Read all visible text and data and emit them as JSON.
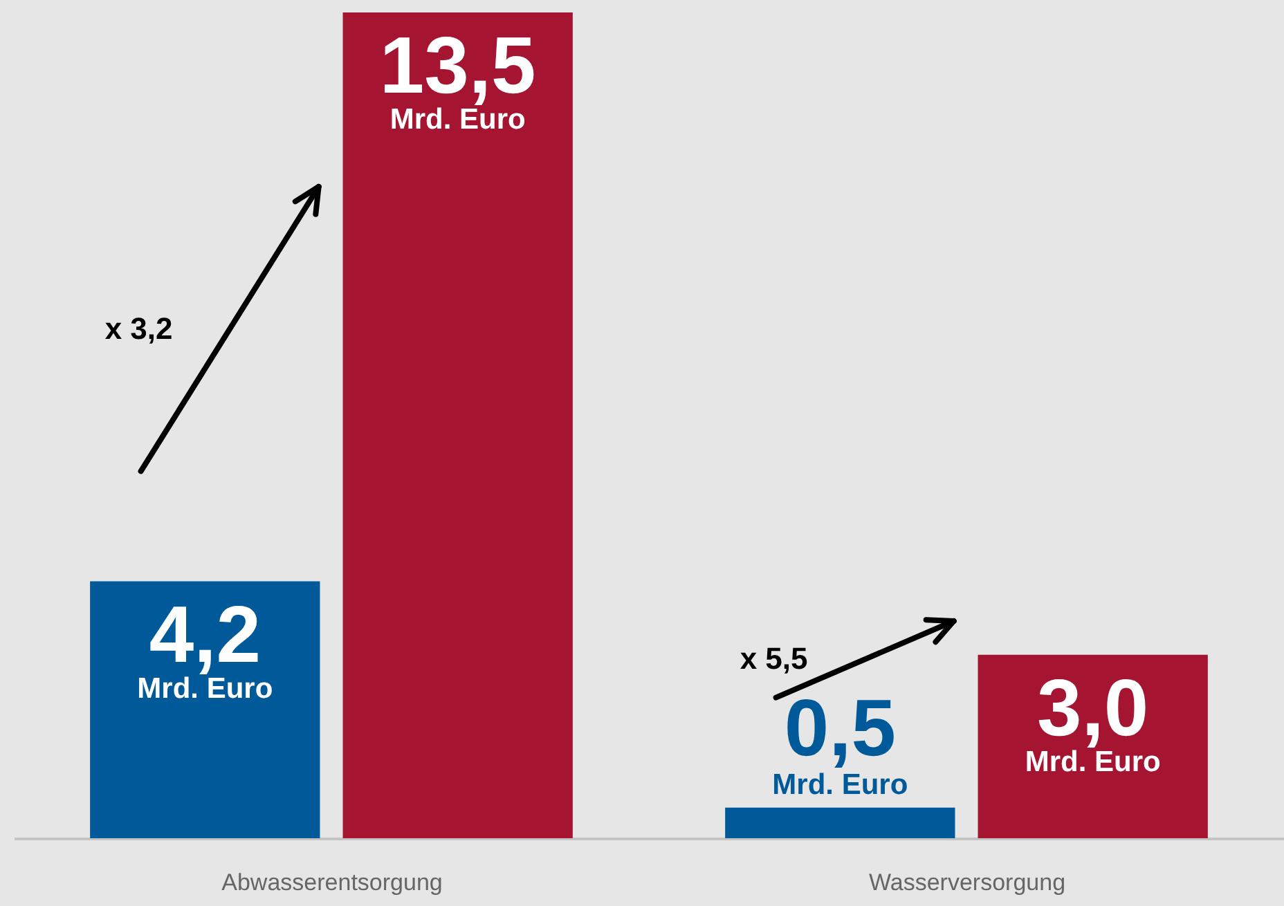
{
  "chart_data": {
    "type": "bar",
    "categories": [
      "Abwasserentsorgung",
      "Wasserversorgung"
    ],
    "series": [
      {
        "color": "#005a9a",
        "values": [
          4.2,
          0.5
        ],
        "value_labels": [
          "4,2 Mrd. Euro",
          "0,5 Mrd. Euro"
        ]
      },
      {
        "color": "#a51431",
        "values": [
          13.5,
          3.0
        ],
        "value_labels": [
          "13,5 Mrd. Euro",
          "3,0 Mrd. Euro"
        ]
      }
    ],
    "annotations": [
      "x 3,2",
      "x 5,5"
    ],
    "grid": false
  }
}
